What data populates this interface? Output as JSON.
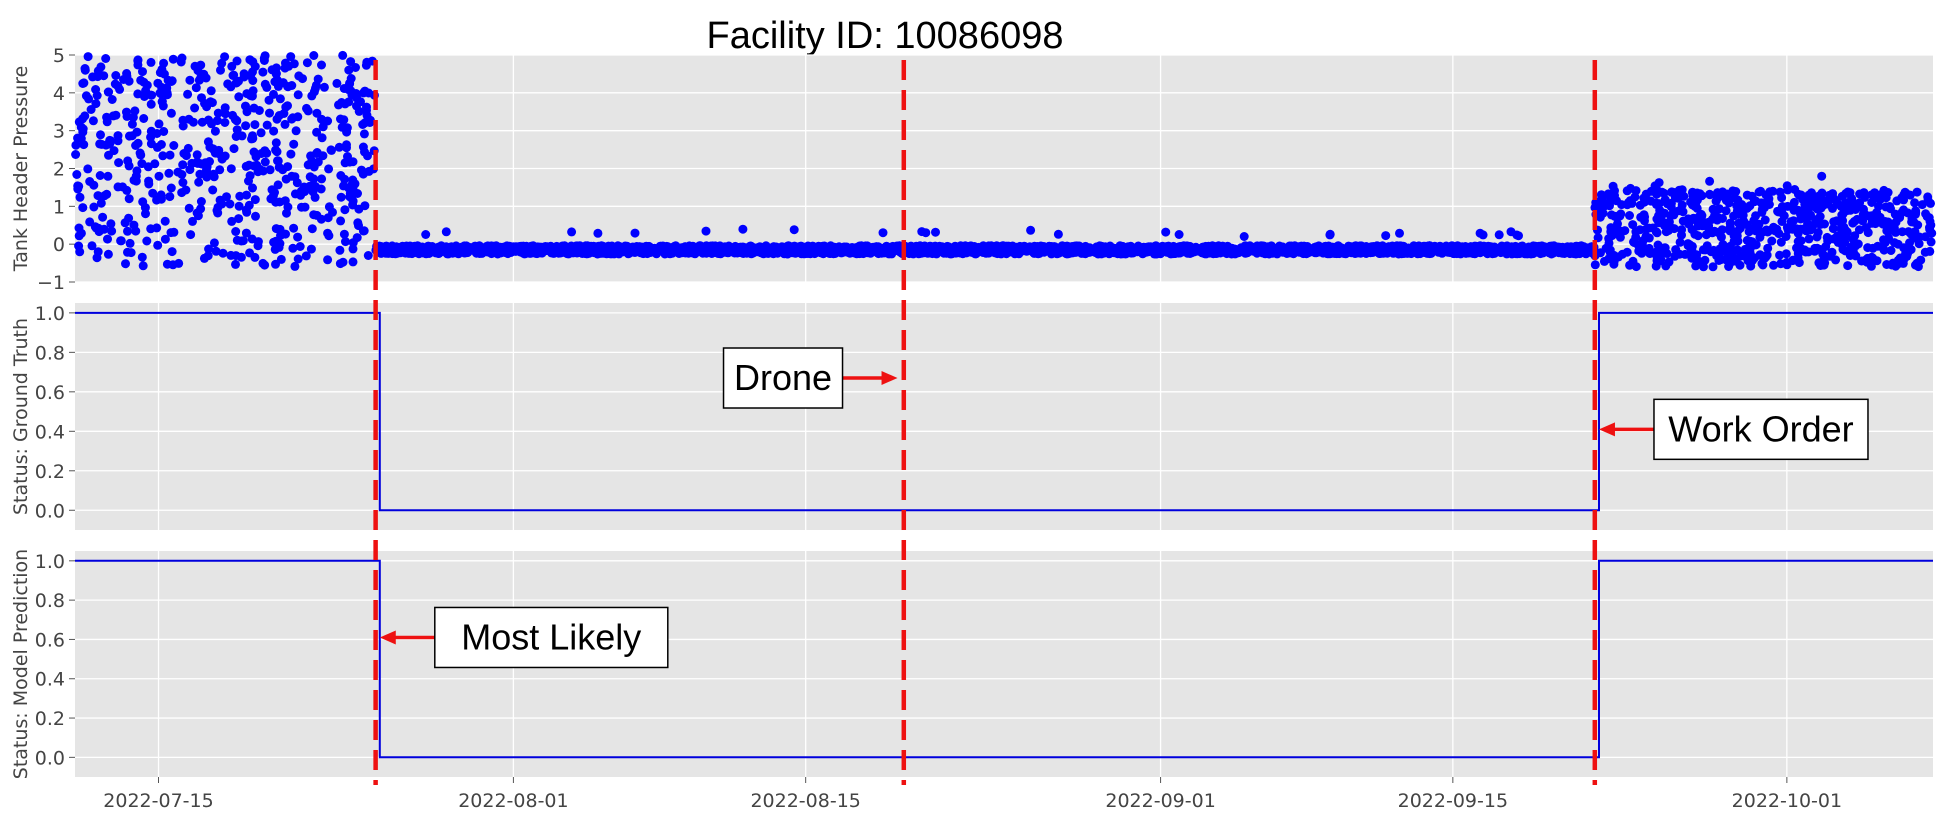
{
  "chart_data": {
    "type": "scatter",
    "title": "Facility ID: 10086098",
    "x_axis": {
      "type": "date",
      "range": [
        "2022-07-11",
        "2022-10-08"
      ],
      "ticks": [
        "2022-07-15",
        "2022-08-01",
        "2022-08-15",
        "2022-09-01",
        "2022-09-15",
        "2022-10-01"
      ]
    },
    "panels": [
      {
        "ylabel": "Tank Header Pressure",
        "ylim": [
          -1,
          5
        ],
        "yticks": [
          "−1",
          "0",
          "1",
          "2",
          "3",
          "4",
          "5"
        ],
        "series": {
          "type": "scatter",
          "color": "#0000ff",
          "segments": [
            {
              "from": "2022-07-11",
              "to": "2022-07-25.4",
              "min": -0.6,
              "max": 5.0,
              "pattern": "high_volatility"
            },
            {
              "from": "2022-07-25.4",
              "to": "2022-09-21.8",
              "min": -0.35,
              "max": 0.05,
              "baseline": -0.15,
              "pattern": "flat_near_zero"
            },
            {
              "from": "2022-09-21.8",
              "to": "2022-10-08",
              "min": -0.6,
              "max": 1.8,
              "pattern": "moderate_volatility"
            }
          ]
        }
      },
      {
        "ylabel": "Status: Ground Truth",
        "ylim": [
          -0.1,
          1.05
        ],
        "yticks": [
          "0.0",
          "0.2",
          "0.4",
          "0.6",
          "0.8",
          "1.0"
        ],
        "series": {
          "type": "step",
          "color": "#0000dd",
          "x": [
            "2022-07-11",
            "2022-07-25.6",
            "2022-07-25.6",
            "2022-09-22",
            "2022-09-22",
            "2022-10-08"
          ],
          "y": [
            1,
            1,
            0,
            0,
            1,
            1
          ]
        }
      },
      {
        "ylabel": "Status: Model Prediction",
        "ylim": [
          -0.1,
          1.05
        ],
        "yticks": [
          "0.0",
          "0.2",
          "0.4",
          "0.6",
          "0.8",
          "1.0"
        ],
        "series": {
          "type": "step",
          "color": "#0000dd",
          "x": [
            "2022-07-11",
            "2022-07-25.6",
            "2022-07-25.6",
            "2022-09-22",
            "2022-09-22",
            "2022-10-08"
          ],
          "y": [
            1,
            1,
            0,
            0,
            1,
            1
          ]
        }
      }
    ],
    "vlines": [
      {
        "date": "2022-07-25.4",
        "color": "#ee1111",
        "style": "dashed"
      },
      {
        "date": "2022-08-19.7",
        "color": "#ee1111",
        "style": "dashed"
      },
      {
        "date": "2022-09-21.8",
        "color": "#ee1111",
        "style": "dashed"
      }
    ],
    "annotations": [
      {
        "text": "Drone",
        "panel": 1,
        "arrow_to_date": "2022-08-19.4",
        "arrow_to_y": 0.67,
        "box_side": "left"
      },
      {
        "text": "Work Order",
        "panel": 1,
        "arrow_to_date": "2022-09-22",
        "arrow_to_y": 0.41,
        "box_side": "right"
      },
      {
        "text": "Most Likely",
        "panel": 2,
        "arrow_to_date": "2022-07-25.6",
        "arrow_to_y": 0.61,
        "box_side": "right"
      }
    ],
    "grid": true
  }
}
